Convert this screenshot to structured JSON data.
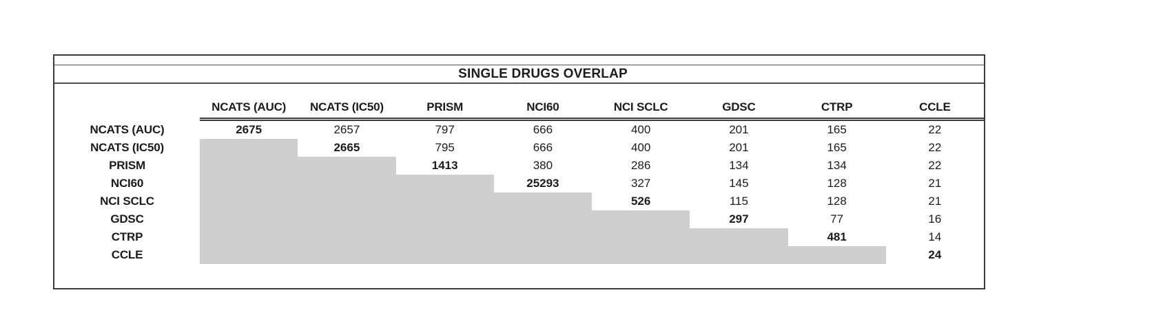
{
  "title": "SINGLE DRUGS OVERLAP",
  "colors": {
    "background": "#ffffff",
    "lower_triangle_fill": "#d0cece",
    "border": "#3a3a3a",
    "text": "#1b1b1b"
  },
  "chart_data": {
    "type": "table",
    "title": "SINGLE DRUGS OVERLAP",
    "columns": [
      "NCATS (AUC)",
      "NCATS (IC50)",
      "PRISM",
      "NCI60",
      "NCI SCLC",
      "GDSC",
      "CTRP",
      "CCLE"
    ],
    "rows": [
      "NCATS (AUC)",
      "NCATS (IC50)",
      "PRISM",
      "NCI60",
      "NCI SCLC",
      "GDSC",
      "CTRP",
      "CCLE"
    ],
    "matrix": [
      [
        2675,
        2657,
        797,
        666,
        400,
        201,
        165,
        22
      ],
      [
        null,
        2665,
        795,
        666,
        400,
        201,
        165,
        22
      ],
      [
        null,
        null,
        1413,
        380,
        286,
        134,
        134,
        22
      ],
      [
        null,
        null,
        null,
        25293,
        327,
        145,
        128,
        21
      ],
      [
        null,
        null,
        null,
        null,
        526,
        115,
        128,
        21
      ],
      [
        null,
        null,
        null,
        null,
        null,
        297,
        77,
        16
      ],
      [
        null,
        null,
        null,
        null,
        null,
        null,
        481,
        14
      ],
      [
        null,
        null,
        null,
        null,
        null,
        null,
        null,
        24
      ]
    ],
    "layout": {
      "diagonal_bold": true,
      "lower_triangle_shaded": true,
      "gridlines": "none",
      "header_rule": "double line under column headers"
    }
  }
}
